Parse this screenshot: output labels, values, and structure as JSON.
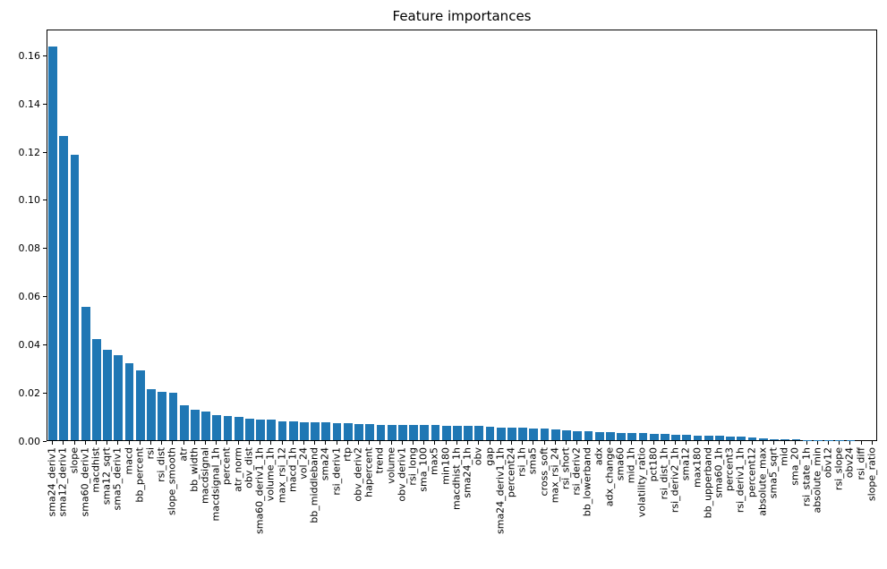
{
  "title": "Feature importances",
  "chart_data": {
    "type": "bar",
    "title": "Feature importances",
    "xlabel": "",
    "ylabel": "",
    "bar_color": "#1f77b4",
    "grid": false,
    "legend": null,
    "x_tick_rotation": 90,
    "ylim": [
      0,
      0.171
    ],
    "yticks": [
      0.0,
      0.02,
      0.04,
      0.06,
      0.08,
      0.1,
      0.12,
      0.14,
      0.16
    ],
    "categories": [
      "sma24_deriv1",
      "sma12_deriv1",
      "slope",
      "sma60_deriv1",
      "macdhist",
      "sma12_sqrt",
      "sma5_deriv1",
      "macd",
      "bb_percent",
      "rsi",
      "rsi_dist",
      "slope_smooth",
      "atr",
      "bb_width",
      "macdsignal",
      "macdsignal_1h",
      "percent",
      "atr_norm",
      "obv_dist",
      "sma60_deriv1_1h",
      "volume_1h",
      "max_rsi_12",
      "macd_1h",
      "vol_24",
      "bb_middleband",
      "sma24",
      "rsi_deriv1",
      "rtp",
      "obv_deriv2",
      "hapercent",
      "trend",
      "volume",
      "obv_deriv1",
      "rsi_long",
      "sma_100",
      "max5",
      "min180",
      "macdhist_1h",
      "sma24_1h",
      "obv",
      "gap",
      "sma24_deriv1_1h",
      "percent24",
      "rsi_1h",
      "sma5",
      "cross_soft",
      "max_rsi_24",
      "rsi_short",
      "rsi_deriv2",
      "bb_lowerband",
      "adx",
      "adx_change",
      "sma60",
      "mid_1h",
      "volatility_ratio",
      "pct180",
      "rsi_dist_1h",
      "rsi_deriv2_1h",
      "sma12",
      "max180",
      "bb_upperband",
      "sma60_1h",
      "percent3",
      "rsi_deriv1_1h",
      "percent12",
      "absolute_max",
      "sma5_sqrt",
      "mid",
      "sma_20",
      "rsi_state_1h",
      "absolute_min",
      "obv12",
      "rsi_slope",
      "obv24",
      "rsi_diff",
      "slope_ratio"
    ],
    "values": [
      0.1635,
      0.1265,
      0.1185,
      0.0553,
      0.0422,
      0.0374,
      0.0352,
      0.0321,
      0.0291,
      0.0212,
      0.02,
      0.0196,
      0.0144,
      0.0127,
      0.012,
      0.0104,
      0.0102,
      0.0097,
      0.0091,
      0.0086,
      0.0084,
      0.0079,
      0.0077,
      0.0076,
      0.0074,
      0.0073,
      0.0071,
      0.007,
      0.0068,
      0.0067,
      0.0065,
      0.0064,
      0.0064,
      0.0064,
      0.0063,
      0.0062,
      0.0061,
      0.006,
      0.0059,
      0.0058,
      0.0057,
      0.0054,
      0.0052,
      0.0051,
      0.005,
      0.0047,
      0.0046,
      0.004,
      0.0037,
      0.0036,
      0.0035,
      0.0032,
      0.003,
      0.0029,
      0.0029,
      0.0028,
      0.0027,
      0.0024,
      0.0023,
      0.0019,
      0.0018,
      0.0017,
      0.0015,
      0.0014,
      0.0013,
      0.0007,
      0.0004,
      0.0003,
      0.0003,
      0.0002,
      0.0002,
      0.0001,
      0.0001,
      0.0001,
      0.0,
      0.0
    ]
  }
}
